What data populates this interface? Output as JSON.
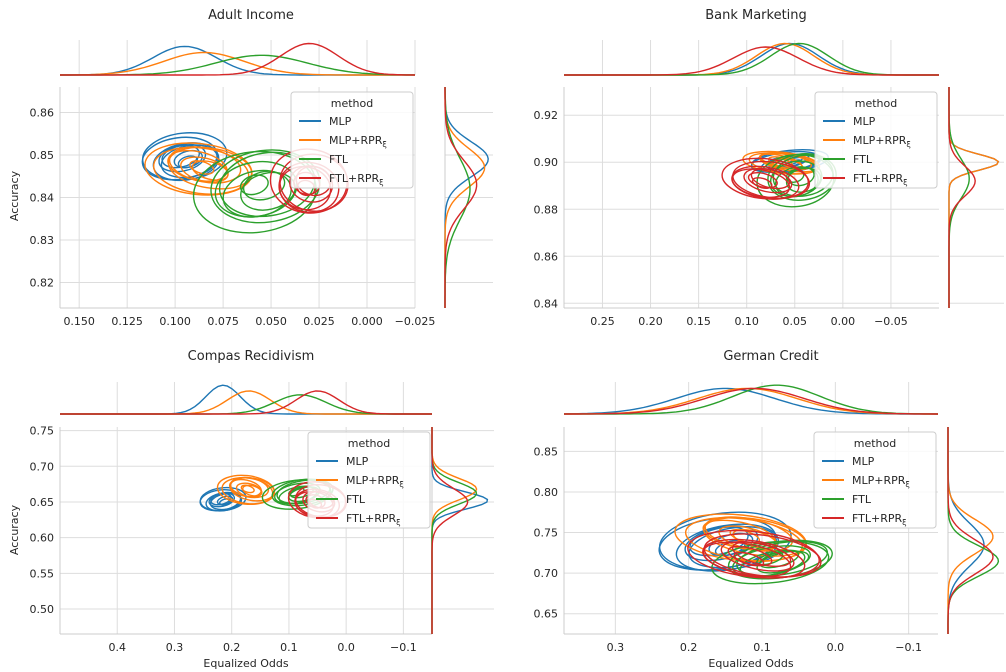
{
  "colors": {
    "MLP": "#1f77b4",
    "MLP+RPR": "#ff7f0e",
    "FTL": "#2ca02c",
    "FTL+RPR": "#d62728"
  },
  "chart_data": [
    {
      "type": "kde-contour",
      "title": "Adult Income",
      "xlabel": "",
      "ylabel": "Accuracy",
      "xlim": [
        0.16,
        -0.025
      ],
      "ylim": [
        0.814,
        0.866
      ],
      "xticks": [
        0.15,
        0.125,
        0.1,
        0.075,
        0.05,
        0.025,
        0.0,
        -0.025
      ],
      "xtick_labels": [
        "0.150",
        "0.125",
        "0.100",
        "0.075",
        "0.050",
        "0.025",
        "0.000",
        "−0.025"
      ],
      "yticks": [
        0.82,
        0.83,
        0.84,
        0.85,
        0.86
      ],
      "ytick_labels": [
        "0.82",
        "0.83",
        "0.84",
        "0.85",
        "0.86"
      ],
      "legend": {
        "title": "method",
        "position": "top-right",
        "entries": [
          "MLP",
          "MLP+RPR",
          "FTL",
          "FTL+RPR"
        ],
        "subscripts": [
          "",
          "ξ",
          "",
          "ξ"
        ]
      },
      "series": [
        {
          "key": "MLP",
          "cx": 0.095,
          "cy": 0.849,
          "sx": 0.022,
          "sy": 0.0055
        },
        {
          "key": "MLP+RPR",
          "cx": 0.085,
          "cy": 0.847,
          "sx": 0.028,
          "sy": 0.006
        },
        {
          "key": "FTL",
          "cx": 0.055,
          "cy": 0.842,
          "sx": 0.032,
          "sy": 0.0095
        },
        {
          "key": "FTL+RPR",
          "cx": 0.03,
          "cy": 0.843,
          "sx": 0.02,
          "sy": 0.0075
        }
      ]
    },
    {
      "type": "kde-contour",
      "title": "Bank Marketing",
      "xlabel": "",
      "ylabel": "",
      "xlim": [
        0.29,
        -0.1
      ],
      "ylim": [
        0.838,
        0.932
      ],
      "xticks": [
        0.25,
        0.2,
        0.15,
        0.1,
        0.05,
        0.0,
        -0.05
      ],
      "xtick_labels": [
        "0.25",
        "0.20",
        "0.15",
        "0.10",
        "0.05",
        "0.00",
        "−0.05"
      ],
      "yticks": [
        0.84,
        0.86,
        0.88,
        0.9,
        0.92
      ],
      "ytick_labels": [
        "0.84",
        "0.86",
        "0.88",
        "0.90",
        "0.92"
      ],
      "legend": {
        "title": "method",
        "position": "top-right",
        "entries": [
          "MLP",
          "MLP+RPR",
          "FTL",
          "FTL+RPR"
        ],
        "subscripts": [
          "",
          "ξ",
          "",
          "ξ"
        ]
      },
      "series": [
        {
          "key": "MLP",
          "cx": 0.055,
          "cy": 0.9,
          "sx": 0.04,
          "sy": 0.0045
        },
        {
          "key": "MLP+RPR",
          "cx": 0.06,
          "cy": 0.9,
          "sx": 0.04,
          "sy": 0.0045
        },
        {
          "key": "FTL",
          "cx": 0.045,
          "cy": 0.893,
          "sx": 0.04,
          "sy": 0.011
        },
        {
          "key": "FTL+RPR",
          "cx": 0.08,
          "cy": 0.892,
          "sx": 0.045,
          "sy": 0.0085
        }
      ]
    },
    {
      "type": "kde-contour",
      "title": "Compas Recidivism",
      "xlabel": "Equalized Odds",
      "ylabel": "Accuracy",
      "xlim": [
        0.5,
        -0.15
      ],
      "ylim": [
        0.465,
        0.755
      ],
      "xticks": [
        0.4,
        0.3,
        0.2,
        0.1,
        0.0,
        -0.1
      ],
      "xtick_labels": [
        "0.4",
        "0.3",
        "0.2",
        "0.1",
        "0.0",
        "−0.1"
      ],
      "yticks": [
        0.5,
        0.55,
        0.6,
        0.65,
        0.7,
        0.75
      ],
      "ytick_labels": [
        "0.50",
        "0.55",
        "0.60",
        "0.65",
        "0.70",
        "0.75"
      ],
      "legend": {
        "title": "method",
        "position": "top-right",
        "entries": [
          "MLP",
          "MLP+RPR",
          "FTL",
          "FTL+RPR"
        ],
        "subscripts": [
          "",
          "ξ",
          "",
          "ξ"
        ]
      },
      "series": [
        {
          "key": "MLP",
          "cx": 0.215,
          "cy": 0.652,
          "sx": 0.04,
          "sy": 0.016
        },
        {
          "key": "MLP+RPR",
          "cx": 0.17,
          "cy": 0.668,
          "sx": 0.05,
          "sy": 0.02
        },
        {
          "key": "FTL",
          "cx": 0.08,
          "cy": 0.662,
          "sx": 0.06,
          "sy": 0.02
        },
        {
          "key": "FTL+RPR",
          "cx": 0.05,
          "cy": 0.65,
          "sx": 0.05,
          "sy": 0.025
        }
      ]
    },
    {
      "type": "kde-contour",
      "title": "German Credit",
      "xlabel": "Equalized Odds",
      "ylabel": "",
      "xlim": [
        0.37,
        -0.14
      ],
      "ylim": [
        0.625,
        0.88
      ],
      "xticks": [
        0.3,
        0.2,
        0.1,
        0.0,
        -0.1
      ],
      "xtick_labels": [
        "0.3",
        "0.2",
        "0.1",
        "0.0",
        "−0.1"
      ],
      "yticks": [
        0.65,
        0.7,
        0.75,
        0.8,
        0.85
      ],
      "ytick_labels": [
        "0.65",
        "0.70",
        "0.75",
        "0.80",
        "0.85"
      ],
      "legend": {
        "title": "method",
        "position": "top-right",
        "entries": [
          "MLP",
          "MLP+RPR",
          "FTL",
          "FTL+RPR"
        ],
        "subscripts": [
          "",
          "ξ",
          "",
          "ξ"
        ]
      },
      "series": [
        {
          "key": "MLP",
          "cx": 0.15,
          "cy": 0.735,
          "sx": 0.09,
          "sy": 0.035
        },
        {
          "key": "MLP+RPR",
          "cx": 0.12,
          "cy": 0.745,
          "sx": 0.09,
          "sy": 0.028
        },
        {
          "key": "FTL",
          "cx": 0.08,
          "cy": 0.715,
          "sx": 0.08,
          "sy": 0.025
        },
        {
          "key": "FTL+RPR",
          "cx": 0.11,
          "cy": 0.72,
          "sx": 0.09,
          "sy": 0.028
        }
      ]
    }
  ]
}
